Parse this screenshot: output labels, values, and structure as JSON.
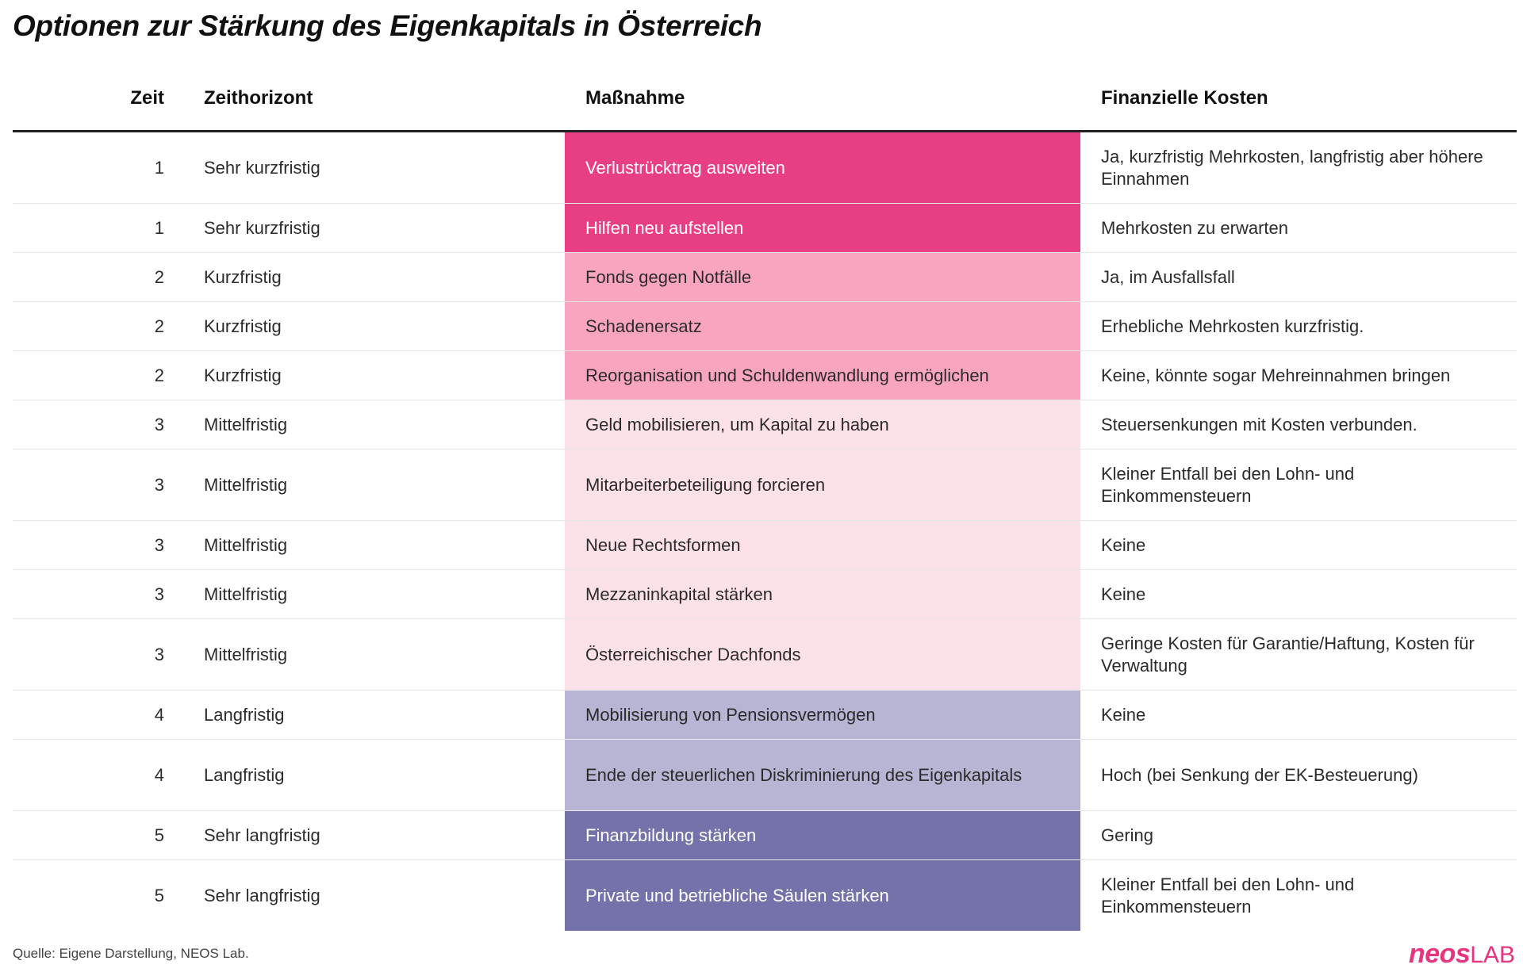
{
  "title": "Optionen zur Stärkung des Eigenkapitals in Österreich",
  "source": "Quelle: Eigene Darstellung, NEOS Lab.",
  "logo": {
    "part1": "neos",
    "part2": "LAB"
  },
  "colors": {
    "1": "#e83e84",
    "2": "#f9a5c0",
    "3": "#fde1e8",
    "4": "#b7b4d4",
    "5": "#7572ab"
  },
  "text_colors": {
    "light": "#ffffff",
    "dark": "#2b2b2b"
  },
  "chart_data": {
    "type": "table",
    "columns": [
      "Zeit",
      "Zeithorizont",
      "Maßnahme",
      "Finanzielle Kosten"
    ],
    "rows": [
      {
        "zeit": "1",
        "horizont": "Sehr kurzfristig",
        "massnahme": "Verlustrücktrag ausweiten",
        "kosten": "Ja, kurzfristig Mehrkosten, langfristig aber höhere Einnahmen"
      },
      {
        "zeit": "1",
        "horizont": "Sehr kurzfristig",
        "massnahme": "Hilfen neu aufstellen",
        "kosten": "Mehrkosten zu erwarten"
      },
      {
        "zeit": "2",
        "horizont": "Kurzfristig",
        "massnahme": "Fonds gegen Notfälle",
        "kosten": "Ja, im Ausfallsfall"
      },
      {
        "zeit": "2",
        "horizont": "Kurzfristig",
        "massnahme": "Schadenersatz",
        "kosten": "Erhebliche Mehrkosten kurzfristig."
      },
      {
        "zeit": "2",
        "horizont": "Kurzfristig",
        "massnahme": "Reorganisation und Schuldenwandlung ermöglichen",
        "kosten": "Keine, könnte sogar Mehreinnahmen bringen"
      },
      {
        "zeit": "3",
        "horizont": "Mittelfristig",
        "massnahme": "Geld mobilisieren, um Kapital zu haben",
        "kosten": "Steuersenkungen mit Kosten verbunden."
      },
      {
        "zeit": "3",
        "horizont": "Mittelfristig",
        "massnahme": "Mitarbeiterbeteiligung forcieren",
        "kosten": "Kleiner Entfall bei den Lohn- und Einkommensteuern"
      },
      {
        "zeit": "3",
        "horizont": "Mittelfristig",
        "massnahme": "Neue Rechtsformen",
        "kosten": "Keine"
      },
      {
        "zeit": "3",
        "horizont": "Mittelfristig",
        "massnahme": "Mezzaninkapital stärken",
        "kosten": "Keine"
      },
      {
        "zeit": "3",
        "horizont": "Mittelfristig",
        "massnahme": "Österreichischer Dachfonds",
        "kosten": "Geringe Kosten für Garantie/Haftung, Kosten für Verwaltung"
      },
      {
        "zeit": "4",
        "horizont": "Langfristig",
        "massnahme": "Mobilisierung von Pensionsvermögen",
        "kosten": "Keine"
      },
      {
        "zeit": "4",
        "horizont": "Langfristig",
        "massnahme": "Ende der steuerlichen Diskriminierung des Eigenkapitals",
        "kosten": "Hoch (bei Senkung der EK-Besteuerung)"
      },
      {
        "zeit": "5",
        "horizont": "Sehr langfristig",
        "massnahme": "Finanzbildung stärken",
        "kosten": "Gering"
      },
      {
        "zeit": "5",
        "horizont": "Sehr langfristig",
        "massnahme": "Private und betriebliche Säulen stärken",
        "kosten": "Kleiner Entfall bei den Lohn- und Einkommensteuern"
      }
    ]
  }
}
